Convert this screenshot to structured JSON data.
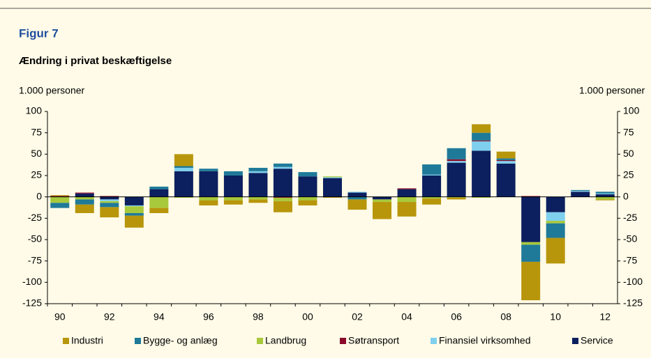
{
  "chart_data": {
    "type": "stacked_bar",
    "figure_label": "Figur 7",
    "title": "Ændring i privat beskæftigelse",
    "y_label": "1.000 personer",
    "y2_label": "1.000 personer",
    "categories": [
      "90",
      null,
      "92",
      null,
      "94",
      null,
      "96",
      null,
      "98",
      null,
      "00",
      null,
      "02",
      null,
      "04",
      null,
      "06",
      null,
      "08",
      null,
      "10",
      null,
      "12"
    ],
    "series": [
      {
        "name": "Industri",
        "color": "#b8960c",
        "values": [
          1,
          -10,
          -12,
          -14,
          -6,
          14,
          -6,
          -5,
          -4,
          -13,
          -6,
          -1,
          -12,
          -20,
          -17,
          -7,
          -2,
          10,
          8,
          -45,
          -30,
          0,
          -1
        ]
      },
      {
        "name": "Bygge- og anlæg",
        "color": "#1f7a99",
        "values": [
          -6,
          -6,
          -5,
          -3,
          3,
          2,
          3,
          5,
          4,
          4,
          5,
          0,
          -3,
          0,
          0,
          12,
          13,
          9,
          2,
          -20,
          -17,
          1,
          2
        ]
      },
      {
        "name": "Landbrug",
        "color": "#a8c93b",
        "values": [
          -7,
          -3,
          -2,
          -8,
          -13,
          -1,
          -4,
          -4,
          -3,
          -4,
          -4,
          1,
          0,
          -3,
          -6,
          -2,
          -1,
          -1,
          0,
          -3,
          -3,
          0,
          -3
        ]
      },
      {
        "name": "Søtransport",
        "color": "#8b0a2a",
        "values": [
          1,
          1,
          1,
          0,
          0,
          0,
          0,
          0,
          0,
          -1,
          0,
          0,
          0,
          0,
          1,
          0,
          2,
          1,
          1,
          1,
          0,
          0,
          0
        ]
      },
      {
        "name": "Finansiel virksomhed",
        "color": "#7fcfee",
        "values": [
          0,
          0,
          -2,
          -1,
          0,
          4,
          0,
          0,
          2,
          2,
          0,
          1,
          1,
          0,
          0,
          1,
          2,
          11,
          3,
          0,
          -10,
          1,
          1
        ]
      },
      {
        "name": "Service",
        "color": "#0c1f5e",
        "values": [
          0,
          4,
          -3,
          -10,
          9,
          30,
          30,
          25,
          28,
          33,
          24,
          22,
          5,
          -3,
          9,
          25,
          40,
          54,
          39,
          -53,
          -18,
          6,
          3
        ]
      }
    ],
    "ylim": [
      -125,
      100
    ],
    "yticks": [
      -125,
      -100,
      -75,
      -50,
      -25,
      0,
      25,
      50,
      75,
      100
    ]
  }
}
